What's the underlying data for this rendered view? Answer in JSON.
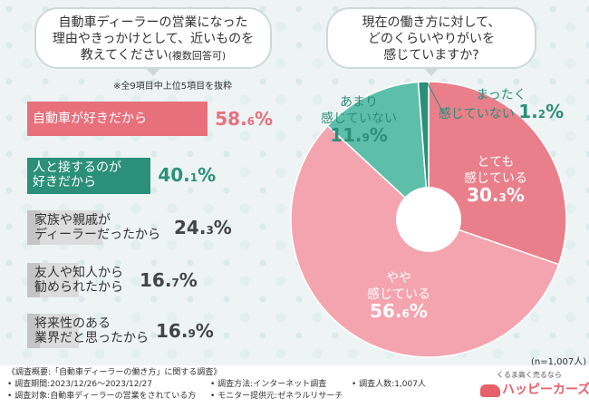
{
  "left_question": {
    "line1": "自動車ディーラーの営業になった",
    "line2": "理由やきっかけとして、近いものを",
    "line3": "教えてください",
    "line3_note": "(複数回答可)",
    "note": "※全9項目中上位5項目を抜粋"
  },
  "right_question": {
    "line1": "現在の働き方に対して、",
    "line2": "どのくらいやりがいを",
    "line3": "感じていますか?"
  },
  "sample_size": "(n=1,007人)",
  "chart_data": [
    {
      "type": "bar",
      "orientation": "horizontal",
      "categories": [
        "自動車が好きだから",
        "人と接するのが好きだから",
        "家族や親戚がディーラーだったから",
        "友人や知人から勧められたから",
        "将来性のある業界だと思ったから"
      ],
      "values": [
        58.6,
        40.1,
        24.3,
        16.7,
        16.9
      ],
      "unit": "%",
      "colors": [
        "#e8707d",
        "#2b8f7a",
        "#c4c4c4",
        "#c4c4c4",
        "#c4c4c4"
      ],
      "labels": [
        {
          "lines": [
            "自動車が好きだから"
          ],
          "value_int": "58.",
          "value_dec": "6",
          "unit": "%"
        },
        {
          "lines": [
            "人と接するのが",
            "好きだから"
          ],
          "value_int": "40.",
          "value_dec": "1",
          "unit": "%"
        },
        {
          "lines": [
            "家族や親戚が",
            "ディーラーだったから"
          ],
          "value_int": "24.",
          "value_dec": "3",
          "unit": "%"
        },
        {
          "lines": [
            "友人や知人から",
            "勧められたから"
          ],
          "value_int": "16.",
          "value_dec": "7",
          "unit": "%"
        },
        {
          "lines": [
            "将来性のある",
            "業界だと思ったから"
          ],
          "value_int": "16.",
          "value_dec": "9",
          "unit": "%"
        }
      ]
    },
    {
      "type": "pie",
      "donut": true,
      "categories": [
        "とても感じている",
        "やや感じている",
        "あまり感じていない",
        "まったく感じていない"
      ],
      "values": [
        30.3,
        56.6,
        11.9,
        1.2
      ],
      "unit": "%",
      "colors": [
        "#e97f8a",
        "#f4a4ae",
        "#5dbfa9",
        "#2b8f7a"
      ],
      "labels": [
        {
          "lines": [
            "とても",
            "感じている"
          ],
          "value_int": "30.",
          "value_dec": "3",
          "unit": "%",
          "color": "#ffffff"
        },
        {
          "lines": [
            "やや",
            "感じている"
          ],
          "value_int": "56.",
          "value_dec": "6",
          "unit": "%",
          "color": "#ffffff"
        },
        {
          "lines": [
            "あまり",
            "感じていない"
          ],
          "value_int": "11.",
          "value_dec": "9",
          "unit": "%",
          "color": "#2b8f7a"
        },
        {
          "lines": [
            "まったく",
            "感じていない"
          ],
          "value_int": "1.",
          "value_dec": "2",
          "unit": "%",
          "color": "#2b8f7a"
        }
      ]
    }
  ],
  "footer": {
    "survey_title": "《調査概要:「自動車ディーラーの働き方」に関する調査》",
    "period": "• 調査期間:2023/12/26〜2023/12/27",
    "target": "• 調査対象:自動車ディーラーの営業をされている方",
    "method": "• 調査方法:インターネット調査",
    "provider": "• モニター提供元:ゼネラルリサーチ",
    "count": "• 調査人数:1,007人",
    "logo_tagline": "くるま高く売るなら",
    "logo_name": "ハッピーカーズ"
  }
}
